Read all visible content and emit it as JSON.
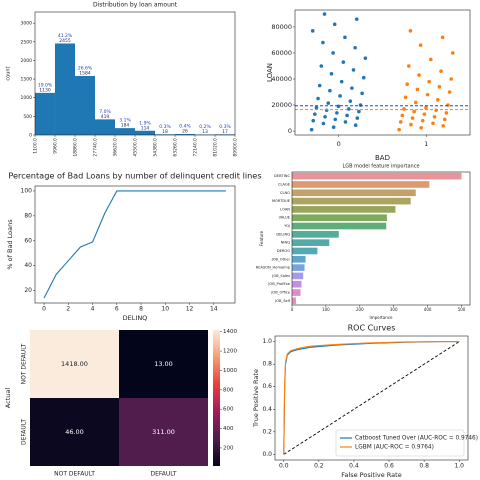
{
  "chart_data": [
    {
      "type": "histogram",
      "title": "Distribution by loan amount",
      "ylabel": "count",
      "bins": [
        1100,
        9960,
        18860,
        27740,
        36620,
        45500,
        54380,
        63260,
        72140,
        81020,
        89900
      ],
      "values": [
        1130,
        2455,
        1584,
        419,
        184,
        114,
        18,
        26,
        13,
        17
      ],
      "annotations": [
        "19.0%",
        "41.2%",
        "26.6%",
        "7.0%",
        "3.1%",
        "1.9%",
        "0.3%",
        "0.4%",
        "0.2%",
        "0.3%"
      ],
      "xlim": [
        1100,
        89900
      ],
      "xticks": [
        {
          "value": 1100,
          "label": "1100.0"
        },
        {
          "value": 9960,
          "label": "9960.0"
        },
        {
          "value": 18860,
          "label": "18860.0"
        },
        {
          "value": 27740,
          "label": "27740.0"
        },
        {
          "value": 36620,
          "label": "36620.0"
        },
        {
          "value": 45500,
          "label": "45500.0"
        },
        {
          "value": 54380,
          "label": "54380.0"
        },
        {
          "value": 63260,
          "label": "63260.0"
        },
        {
          "value": 72140,
          "label": "72140.0"
        },
        {
          "value": 81020,
          "label": "81020.0"
        },
        {
          "value": 89900,
          "label": "89900.0"
        }
      ],
      "ylim": [
        0,
        3300
      ],
      "yticks": [
        0,
        500,
        1000,
        1500,
        2000,
        2500,
        3000
      ],
      "color": "#1f77b4"
    },
    {
      "type": "strip",
      "xlabel": "BAD",
      "ylabel": "LOAN",
      "categories": [
        "0",
        "1"
      ],
      "colors": [
        "#1f77b4",
        "#ff7f0e"
      ],
      "points": [
        [
          1100,
          3000,
          4500,
          5800,
          7000,
          8000,
          9000,
          10000,
          11000,
          12000,
          13000,
          14000,
          15000,
          16000,
          17000,
          18000,
          19000,
          20000,
          21500,
          23000,
          25000,
          27000,
          29000,
          31000,
          33000,
          35000,
          38000,
          41000,
          44000,
          47000,
          50000,
          53000,
          56000,
          60000,
          64000,
          68000,
          72000,
          77000,
          82000,
          86000,
          89900
        ],
        [
          1100,
          2500,
          4000,
          5000,
          6000,
          7000,
          8000,
          9000,
          10000,
          11000,
          12000,
          13000,
          14000,
          15000,
          16000,
          17000,
          18000,
          20000,
          22000,
          24000,
          26000,
          28000,
          30000,
          32000,
          34000,
          36000,
          38000,
          40000,
          43000,
          46000,
          50000,
          55000,
          60000,
          66000,
          72000,
          77000
        ]
      ],
      "lines": [
        {
          "value": 19500,
          "color": "#1f3fdf"
        },
        {
          "value": 16500,
          "color": "#ff7f0e"
        }
      ],
      "ylim": [
        -3000,
        93000
      ],
      "yticks": [
        0,
        20000,
        40000,
        60000,
        80000
      ]
    },
    {
      "type": "line",
      "title": "Percentage of Bad Loans by number of delinquent credit lines",
      "xlabel": "DELINQ",
      "ylabel": "% of Bad Loans",
      "x": [
        0,
        1,
        2,
        3,
        4,
        5,
        6,
        7,
        8,
        9,
        10,
        11,
        12,
        13,
        14,
        15
      ],
      "values": [
        14,
        33,
        44,
        55,
        59,
        82,
        100,
        100,
        100,
        100,
        100,
        100,
        100,
        100,
        100,
        100
      ],
      "color": "#1f77b4",
      "xlim": [
        -0.75,
        15.75
      ],
      "xticks": [
        0,
        2,
        4,
        6,
        8,
        10,
        12,
        14
      ],
      "ylim": [
        10,
        104
      ],
      "yticks": [
        20,
        40,
        60,
        80,
        100
      ]
    },
    {
      "type": "barh",
      "title": "LGB model feature importance",
      "xlabel": "Importance",
      "ylabel": "Feature",
      "categories": [
        "DEBTINC",
        "CLAGE",
        "CLNO",
        "MORTDUE",
        "LOAN",
        "VALUE",
        "YOJ",
        "DELINQ",
        "NINQ",
        "DEROG",
        "JOB_Other",
        "REASON_HomeImp",
        "JOB_Sales",
        "JOB_ProfExe",
        "JOB_Office",
        "JOB_Self"
      ],
      "values": [
        500,
        405,
        365,
        350,
        305,
        280,
        278,
        138,
        110,
        75,
        40,
        37,
        33,
        28,
        25,
        12
      ],
      "colors": [
        "#e7949b",
        "#de9a6f",
        "#c5a06b",
        "#ada45f",
        "#99a55a",
        "#7fab5d",
        "#5fae7a",
        "#53ad98",
        "#53aaa9",
        "#55a8b7",
        "#5ba6cc",
        "#7aa4e0",
        "#a59ce3",
        "#c290e3",
        "#de8bd6",
        "#e690bd"
      ],
      "xlim": [
        0,
        525
      ],
      "xticks": [
        0,
        100,
        200,
        300,
        400,
        500
      ]
    },
    {
      "type": "heatmap",
      "ylabel": "Actual",
      "rows": [
        "NOT DEFAULT",
        "DEFAULT"
      ],
      "columns": [
        "NOT DEFAULT",
        "DEFAULT"
      ],
      "values": [
        [
          1418,
          13
        ],
        [
          46,
          311
        ]
      ],
      "value_labels": [
        [
          "1418.00",
          "13.00"
        ],
        [
          "46.00",
          "311.00"
        ]
      ],
      "clim": [
        13,
        1418
      ],
      "cbar_ticks": [
        200,
        400,
        600,
        800,
        1000,
        1200,
        1400
      ],
      "colormap": [
        "#03051a",
        "#4c1d4b",
        "#a11a5b",
        "#e83f3f",
        "#f69c73",
        "#faebdd"
      ]
    },
    {
      "type": "line",
      "title": "ROC Curves",
      "xlabel": "False Positive Rate",
      "ylabel": "True Positive Rate",
      "x": [
        0,
        0.005,
        0.01,
        0.02,
        0.04,
        0.08,
        0.15,
        0.3,
        0.5,
        0.7,
        0.9,
        1.0
      ],
      "series": [
        {
          "name": "Catboost Tuned Over (AUC-ROC = 0.9746)",
          "color": "#1f77b4",
          "values": [
            0,
            0.6,
            0.8,
            0.88,
            0.91,
            0.93,
            0.95,
            0.97,
            0.985,
            0.995,
            1,
            1
          ]
        },
        {
          "name": "LGBM (AUC-ROC = 0.9764)",
          "color": "#ff7f0e",
          "values": [
            0,
            0.62,
            0.82,
            0.89,
            0.92,
            0.94,
            0.96,
            0.975,
            0.99,
            0.997,
            1,
            1
          ]
        }
      ],
      "diagonal": true,
      "legend": "lower right",
      "xlim": [
        -0.05,
        1.05
      ],
      "xticks": [
        {
          "value": 0,
          "label": "0.0"
        },
        {
          "value": 0.2,
          "label": "0.2"
        },
        {
          "value": 0.4,
          "label": "0.4"
        },
        {
          "value": 0.6,
          "label": "0.6"
        },
        {
          "value": 0.8,
          "label": "0.8"
        },
        {
          "value": 1,
          "label": "1.0"
        }
      ],
      "ylim": [
        -0.05,
        1.05
      ],
      "yticks": [
        {
          "value": 0,
          "label": "0.0"
        },
        {
          "value": 0.2,
          "label": "0.2"
        },
        {
          "value": 0.4,
          "label": "0.4"
        },
        {
          "value": 0.6,
          "label": "0.6"
        },
        {
          "value": 0.8,
          "label": "0.8"
        },
        {
          "value": 1,
          "label": "1.0"
        }
      ]
    }
  ]
}
